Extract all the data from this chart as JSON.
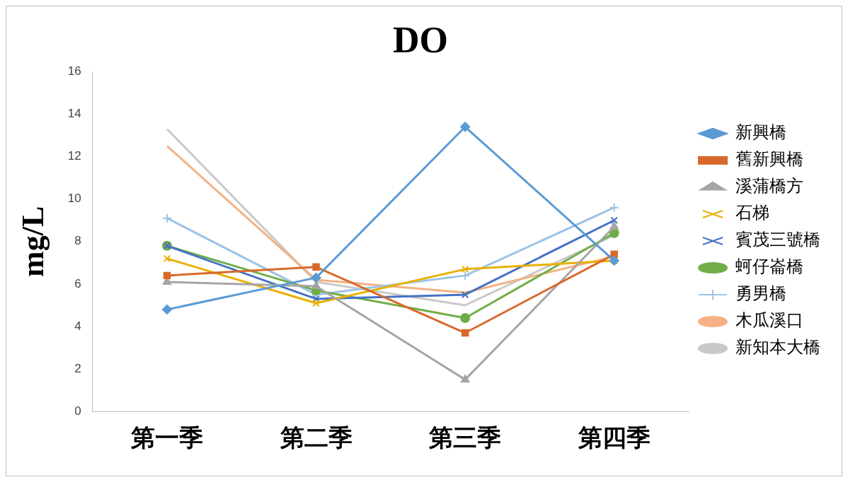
{
  "chart_data": {
    "type": "line",
    "title": "DO",
    "ylabel": "mg/L",
    "categories": [
      "第一季",
      "第二季",
      "第三季",
      "第四季"
    ],
    "ylim": [
      0,
      16
    ],
    "yticks": [
      0,
      2,
      4,
      6,
      8,
      10,
      12,
      14,
      16
    ],
    "grid": false,
    "legend": "right",
    "line_style": "solid",
    "series": [
      {
        "name": "新興橋",
        "color": "#5b9bd5",
        "marker": "diamond",
        "values": [
          4.8,
          6.3,
          13.4,
          7.1
        ]
      },
      {
        "name": "舊新興橋",
        "color": "#d9692b",
        "marker": "square",
        "values": [
          6.4,
          6.8,
          3.7,
          7.4
        ]
      },
      {
        "name": "溪蒲橋方",
        "color": "#a5a5a5",
        "marker": "triangle",
        "values": [
          6.1,
          5.9,
          1.5,
          8.7
        ]
      },
      {
        "name": "石梯",
        "color": "#e8b000",
        "marker": "cross",
        "values": [
          7.2,
          5.1,
          6.7,
          7.1
        ]
      },
      {
        "name": "賓茂三號橋",
        "color": "#4472c4",
        "marker": "cross",
        "values": [
          7.8,
          5.3,
          5.5,
          9.0
        ]
      },
      {
        "name": "蚵仔崙橋",
        "color": "#70ad47",
        "marker": "circle",
        "values": [
          7.8,
          5.7,
          4.4,
          8.4
        ]
      },
      {
        "name": "勇男橋",
        "color": "#9dc3e6",
        "marker": "plus",
        "values": [
          9.1,
          5.5,
          6.4,
          9.6
        ]
      },
      {
        "name": "木瓜溪口",
        "color": "#f4b183",
        "marker": "none",
        "values": [
          12.5,
          6.2,
          5.6,
          7.3
        ]
      },
      {
        "name": "新知本大橋",
        "color": "#c9c9c9",
        "marker": "none",
        "values": [
          13.3,
          6.1,
          5.0,
          8.3
        ]
      }
    ]
  }
}
